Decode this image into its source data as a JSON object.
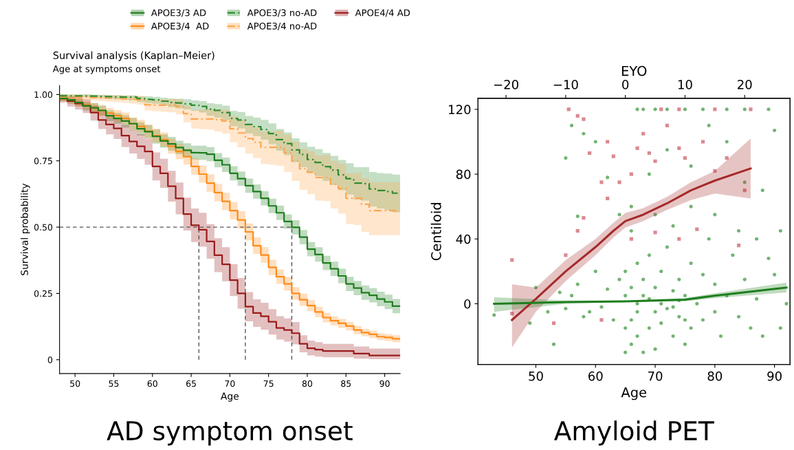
{
  "chart_data": [
    {
      "type": "step",
      "title": "Survival analysis (Kaplan–Meier)",
      "subtitle": "Age at symptoms onset",
      "xlabel": "Age",
      "ylabel": "Survival probability",
      "x": [
        48,
        49,
        50,
        51,
        52,
        53,
        54,
        55,
        56,
        57,
        58,
        59,
        60,
        61,
        62,
        63,
        64,
        65,
        66,
        67,
        68,
        69,
        70,
        71,
        72,
        73,
        74,
        75,
        76,
        77,
        78,
        79,
        80,
        81,
        82,
        83,
        84,
        85,
        86,
        87,
        88,
        89,
        90,
        91,
        92
      ],
      "series": [
        {
          "name": "APOE3/3 AD",
          "color": "#1e7d1e",
          "line_style": "solid",
          "values": [
            0.985,
            0.98,
            0.97,
            0.957,
            0.95,
            0.94,
            0.92,
            0.91,
            0.9,
            0.89,
            0.871,
            0.86,
            0.842,
            0.825,
            0.814,
            0.8,
            0.79,
            0.781,
            0.78,
            0.775,
            0.752,
            0.735,
            0.703,
            0.683,
            0.656,
            0.634,
            0.609,
            0.58,
            0.554,
            0.521,
            0.499,
            0.462,
            0.417,
            0.397,
            0.365,
            0.343,
            0.316,
            0.286,
            0.27,
            0.253,
            0.243,
            0.229,
            0.218,
            0.202,
            0.202
          ],
          "lower": [
            0.975,
            0.965,
            0.955,
            0.94,
            0.93,
            0.92,
            0.9,
            0.89,
            0.875,
            0.865,
            0.845,
            0.835,
            0.815,
            0.8,
            0.788,
            0.775,
            0.765,
            0.755,
            0.753,
            0.748,
            0.725,
            0.708,
            0.676,
            0.656,
            0.629,
            0.607,
            0.582,
            0.553,
            0.527,
            0.494,
            0.472,
            0.435,
            0.39,
            0.37,
            0.338,
            0.316,
            0.289,
            0.259,
            0.243,
            0.226,
            0.216,
            0.202,
            0.191,
            0.175,
            0.175
          ],
          "upper": [
            0.995,
            0.99,
            0.985,
            0.972,
            0.968,
            0.958,
            0.94,
            0.93,
            0.922,
            0.912,
            0.895,
            0.885,
            0.868,
            0.85,
            0.84,
            0.826,
            0.816,
            0.807,
            0.807,
            0.802,
            0.779,
            0.762,
            0.73,
            0.71,
            0.683,
            0.661,
            0.636,
            0.607,
            0.581,
            0.548,
            0.526,
            0.489,
            0.444,
            0.424,
            0.392,
            0.37,
            0.343,
            0.313,
            0.297,
            0.28,
            0.27,
            0.256,
            0.245,
            0.229,
            0.229
          ]
        },
        {
          "name": "APOE3/3 no-AD",
          "color": "#2e8b2e",
          "line_style": "dashed",
          "values": [
            0.995,
            0.995,
            0.995,
            0.995,
            0.994,
            0.993,
            0.992,
            0.991,
            0.99,
            0.99,
            0.985,
            0.982,
            0.98,
            0.975,
            0.97,
            0.968,
            0.965,
            0.96,
            0.955,
            0.945,
            0.94,
            0.932,
            0.91,
            0.904,
            0.887,
            0.879,
            0.868,
            0.853,
            0.83,
            0.815,
            0.791,
            0.774,
            0.755,
            0.744,
            0.728,
            0.715,
            0.697,
            0.683,
            0.666,
            0.664,
            0.644,
            0.638,
            0.634,
            0.628,
            0.628
          ],
          "lower": [
            0.99,
            0.99,
            0.99,
            0.99,
            0.988,
            0.986,
            0.984,
            0.982,
            0.98,
            0.978,
            0.972,
            0.968,
            0.965,
            0.958,
            0.952,
            0.948,
            0.944,
            0.938,
            0.932,
            0.92,
            0.913,
            0.903,
            0.88,
            0.872,
            0.853,
            0.843,
            0.83,
            0.813,
            0.788,
            0.771,
            0.745,
            0.726,
            0.705,
            0.692,
            0.674,
            0.659,
            0.639,
            0.623,
            0.604,
            0.6,
            0.578,
            0.57,
            0.564,
            0.556,
            0.556
          ],
          "upper": [
            1.0,
            1.0,
            1.0,
            1.0,
            0.999,
            0.999,
            0.998,
            0.998,
            0.997,
            0.997,
            0.994,
            0.993,
            0.991,
            0.988,
            0.985,
            0.984,
            0.982,
            0.978,
            0.975,
            0.967,
            0.964,
            0.958,
            0.938,
            0.934,
            0.919,
            0.913,
            0.904,
            0.891,
            0.87,
            0.857,
            0.835,
            0.82,
            0.803,
            0.794,
            0.78,
            0.769,
            0.753,
            0.741,
            0.726,
            0.726,
            0.708,
            0.704,
            0.702,
            0.698,
            0.698
          ]
        },
        {
          "name": "APOE4/4 AD",
          "color": "#9b1b1b",
          "line_style": "solid",
          "values": [
            0.985,
            0.975,
            0.966,
            0.957,
            0.932,
            0.904,
            0.887,
            0.872,
            0.845,
            0.823,
            0.805,
            0.785,
            0.729,
            0.703,
            0.654,
            0.608,
            0.549,
            0.507,
            0.49,
            0.446,
            0.394,
            0.36,
            0.3,
            0.25,
            0.2,
            0.176,
            0.164,
            0.143,
            0.12,
            0.112,
            0.1,
            0.06,
            0.043,
            0.038,
            0.033,
            0.033,
            0.033,
            0.033,
            0.023,
            0.023,
            0.016,
            0.016,
            0.016,
            0.016,
            0.016
          ],
          "lower": [
            0.97,
            0.955,
            0.943,
            0.93,
            0.902,
            0.87,
            0.85,
            0.832,
            0.802,
            0.778,
            0.757,
            0.735,
            0.676,
            0.648,
            0.596,
            0.548,
            0.487,
            0.444,
            0.426,
            0.381,
            0.33,
            0.296,
            0.24,
            0.192,
            0.145,
            0.124,
            0.113,
            0.095,
            0.076,
            0.068,
            0.058,
            0.028,
            0.016,
            0.012,
            0.009,
            0.009,
            0.009,
            0.009,
            0.004,
            0.004,
            0.002,
            0.002,
            0.002,
            0.002,
            0.002
          ],
          "upper": [
            1.0,
            0.993,
            0.988,
            0.983,
            0.96,
            0.937,
            0.922,
            0.91,
            0.886,
            0.866,
            0.851,
            0.834,
            0.782,
            0.758,
            0.712,
            0.668,
            0.611,
            0.57,
            0.554,
            0.511,
            0.458,
            0.424,
            0.36,
            0.308,
            0.255,
            0.228,
            0.215,
            0.191,
            0.164,
            0.156,
            0.142,
            0.092,
            0.072,
            0.066,
            0.06,
            0.06,
            0.06,
            0.06,
            0.05,
            0.05,
            0.042,
            0.042,
            0.042,
            0.042,
            0.042
          ]
        },
        {
          "name": "APOE3/4  AD",
          "color": "#ff8c1a",
          "line_style": "solid",
          "values": [
            0.985,
            0.978,
            0.97,
            0.96,
            0.95,
            0.94,
            0.93,
            0.92,
            0.91,
            0.89,
            0.88,
            0.862,
            0.845,
            0.83,
            0.805,
            0.785,
            0.766,
            0.729,
            0.7,
            0.666,
            0.63,
            0.597,
            0.562,
            0.527,
            0.482,
            0.43,
            0.395,
            0.348,
            0.313,
            0.286,
            0.25,
            0.226,
            0.204,
            0.18,
            0.159,
            0.147,
            0.137,
            0.127,
            0.112,
            0.102,
            0.096,
            0.087,
            0.084,
            0.079,
            0.079
          ],
          "lower": [
            0.975,
            0.965,
            0.955,
            0.944,
            0.932,
            0.921,
            0.91,
            0.899,
            0.888,
            0.867,
            0.856,
            0.837,
            0.819,
            0.803,
            0.777,
            0.756,
            0.736,
            0.698,
            0.668,
            0.633,
            0.597,
            0.564,
            0.529,
            0.494,
            0.45,
            0.399,
            0.365,
            0.319,
            0.286,
            0.26,
            0.226,
            0.203,
            0.183,
            0.16,
            0.141,
            0.13,
            0.12,
            0.111,
            0.097,
            0.088,
            0.082,
            0.074,
            0.071,
            0.066,
            0.066
          ],
          "upper": [
            0.995,
            0.99,
            0.985,
            0.976,
            0.968,
            0.959,
            0.95,
            0.941,
            0.932,
            0.913,
            0.904,
            0.887,
            0.871,
            0.857,
            0.833,
            0.814,
            0.796,
            0.76,
            0.732,
            0.699,
            0.663,
            0.63,
            0.595,
            0.56,
            0.514,
            0.461,
            0.425,
            0.377,
            0.34,
            0.312,
            0.274,
            0.249,
            0.225,
            0.2,
            0.177,
            0.164,
            0.154,
            0.143,
            0.127,
            0.116,
            0.11,
            0.1,
            0.097,
            0.092,
            0.092
          ]
        },
        {
          "name": "APOE3/4 no-AD",
          "color": "#ffa64d",
          "line_style": "dashed",
          "values": [
            0.99,
            0.99,
            0.99,
            0.99,
            0.988,
            0.987,
            0.986,
            0.985,
            0.984,
            0.982,
            0.98,
            0.961,
            0.96,
            0.96,
            0.96,
            0.955,
            0.928,
            0.908,
            0.908,
            0.908,
            0.905,
            0.9,
            0.871,
            0.855,
            0.834,
            0.82,
            0.801,
            0.801,
            0.801,
            0.781,
            0.75,
            0.72,
            0.707,
            0.687,
            0.687,
            0.662,
            0.646,
            0.609,
            0.609,
            0.586,
            0.562,
            0.562,
            0.562,
            0.562,
            0.562
          ],
          "lower": [
            0.98,
            0.98,
            0.98,
            0.98,
            0.977,
            0.975,
            0.973,
            0.971,
            0.969,
            0.966,
            0.962,
            0.94,
            0.937,
            0.935,
            0.933,
            0.925,
            0.895,
            0.872,
            0.869,
            0.867,
            0.861,
            0.853,
            0.82,
            0.801,
            0.777,
            0.76,
            0.738,
            0.735,
            0.732,
            0.708,
            0.674,
            0.641,
            0.624,
            0.6,
            0.598,
            0.57,
            0.551,
            0.511,
            0.508,
            0.482,
            0.47,
            0.47,
            0.47,
            0.47,
            0.47
          ],
          "upper": [
            1.0,
            1.0,
            1.0,
            1.0,
            0.998,
            0.998,
            0.997,
            0.997,
            0.996,
            0.995,
            0.994,
            0.98,
            0.981,
            0.982,
            0.983,
            0.981,
            0.958,
            0.942,
            0.944,
            0.946,
            0.945,
            0.943,
            0.918,
            0.905,
            0.887,
            0.876,
            0.86,
            0.862,
            0.864,
            0.848,
            0.822,
            0.795,
            0.786,
            0.77,
            0.772,
            0.75,
            0.738,
            0.703,
            0.706,
            0.686,
            0.67,
            0.67,
            0.67,
            0.67,
            0.67
          ]
        }
      ],
      "xlim": [
        48,
        92
      ],
      "xticks": [
        50,
        55,
        60,
        65,
        70,
        75,
        80,
        85,
        90
      ],
      "ylim": [
        -0.052,
        1.034
      ],
      "yticks": [
        0,
        0.25,
        {
          "value": 0.5,
          "label": "0.50"
        },
        0.75,
        {
          "value": 1,
          "label": "1.00"
        }
      ],
      "ref_lines": [
        {
          "axis": "y",
          "value": 0.5,
          "color": "#555555",
          "line_style": "dashed"
        },
        {
          "axis": "x",
          "value": 66,
          "color": "#555555",
          "line_style": "dashed"
        },
        {
          "axis": "x",
          "value": 72,
          "color": "#555555",
          "line_style": "dashed"
        },
        {
          "axis": "x",
          "value": 78,
          "color": "#555555",
          "line_style": "dashed"
        }
      ],
      "legend": "top",
      "grid": false,
      "annotations": [
        "AD symptom onset"
      ]
    },
    {
      "type": "scatter",
      "xlabel": "Age",
      "ylabel": "Centiloid",
      "x2label": "EYO",
      "series": [
        {
          "type": "scatter",
          "color": "#74b374",
          "marker": "circle",
          "x": [
            43,
            49,
            50,
            52,
            53,
            54,
            55,
            56,
            57,
            58,
            59,
            60,
            61,
            62,
            63,
            64,
            55,
            56,
            58,
            60,
            62,
            64,
            57,
            65,
            65,
            66,
            66,
            66,
            67,
            67,
            67,
            68,
            68,
            68,
            69,
            69,
            70,
            70,
            70,
            71,
            71,
            72,
            72,
            73,
            73,
            74,
            74,
            75,
            75,
            76,
            76,
            77,
            78,
            78,
            79,
            80,
            80,
            81,
            82,
            83,
            84,
            85,
            86,
            87,
            88,
            89,
            90,
            91,
            92,
            91,
            90,
            89,
            66,
            67,
            68,
            70,
            72,
            75,
            78,
            82,
            85,
            69,
            72,
            76,
            79,
            82,
            85,
            88,
            66,
            70,
            73,
            76,
            80,
            84,
            87,
            65,
            65,
            67,
            69,
            71,
            73,
            74,
            75
          ],
          "values": [
            -7,
            -12,
            10,
            -5,
            -25,
            7,
            -3,
            5,
            12,
            -8,
            -5,
            20,
            -2,
            9,
            -10,
            15,
            90,
            110,
            105,
            100,
            78,
            55,
            54,
            -30,
            20,
            -25,
            10,
            -10,
            0,
            25,
            -20,
            -30,
            5,
            15,
            -15,
            30,
            -5,
            10,
            -28,
            20,
            -12,
            -3,
            35,
            -20,
            8,
            15,
            -8,
            -25,
            5,
            25,
            -15,
            0,
            -10,
            18,
            40,
            -5,
            12,
            -20,
            5,
            30,
            -8,
            15,
            -15,
            3,
            -20,
            28,
            18,
            -15,
            0,
            45,
            107,
            120,
            60,
            120,
            120,
            120,
            120,
            120,
            120,
            120,
            120,
            80,
            95,
            85,
            110,
            100,
            75,
            70,
            45,
            55,
            48,
            60,
            55,
            45,
            40,
            5,
            -15,
            -5,
            3,
            0,
            -2,
            2,
            -10
          ]
        },
        {
          "type": "scatter",
          "color": "#d98a90",
          "marker": "square",
          "x": [
            46,
            46,
            55.5,
            57,
            58,
            59,
            62,
            63,
            61,
            62,
            64,
            66,
            67,
            68,
            69,
            70,
            72,
            74,
            75,
            78,
            80,
            82,
            85,
            86,
            58,
            57,
            55,
            53,
            61,
            66,
            70,
            74,
            77,
            84,
            71,
            74,
            80
          ],
          "values": [
            27,
            -6,
            120,
            116,
            114,
            93,
            100,
            91,
            75,
            65,
            75,
            80,
            96,
            105,
            93,
            88,
            110,
            96,
            90,
            100,
            82,
            90,
            70,
            120,
            53,
            45,
            30,
            -12,
            -10,
            40,
            44,
            40,
            46,
            36,
            120,
            120,
            120
          ]
        },
        {
          "type": "line",
          "color": "#a52a2a",
          "x": [
            46,
            50,
            55,
            60,
            63,
            65,
            68,
            72,
            76,
            80,
            86
          ],
          "values": [
            -10,
            3,
            20,
            35,
            45,
            51,
            55,
            62,
            70,
            76,
            83.5
          ],
          "lower": [
            -27,
            -5,
            14,
            30,
            41,
            47,
            51,
            58,
            64,
            68,
            65
          ],
          "upper": [
            12,
            10,
            27,
            40,
            50,
            56,
            59,
            66,
            75,
            82,
            102
          ]
        },
        {
          "type": "line",
          "color": "#1e7d1e",
          "x": [
            43,
            55,
            65,
            75,
            80,
            92
          ],
          "values": [
            0,
            1,
            1.5,
            2.5,
            5,
            10
          ],
          "lower": [
            -5,
            0,
            1,
            1.5,
            3.5,
            7
          ],
          "upper": [
            4,
            2,
            2,
            3.5,
            6.5,
            13
          ]
        }
      ],
      "xlim": [
        40.3,
        92.6
      ],
      "xticks": [
        50,
        60,
        70,
        80,
        90
      ],
      "x2lim": [
        -24.7,
        27.6
      ],
      "x2ticks": [
        {
          "value": -20,
          "label": "−20"
        },
        {
          "value": -10,
          "label": "−10"
        },
        0,
        10,
        20
      ],
      "ylim": [
        -37.5,
        126.8
      ],
      "yticks": [
        0,
        40,
        80,
        120
      ],
      "grid": false,
      "legend": false,
      "annotations": [
        "Amyloid PET"
      ]
    }
  ]
}
